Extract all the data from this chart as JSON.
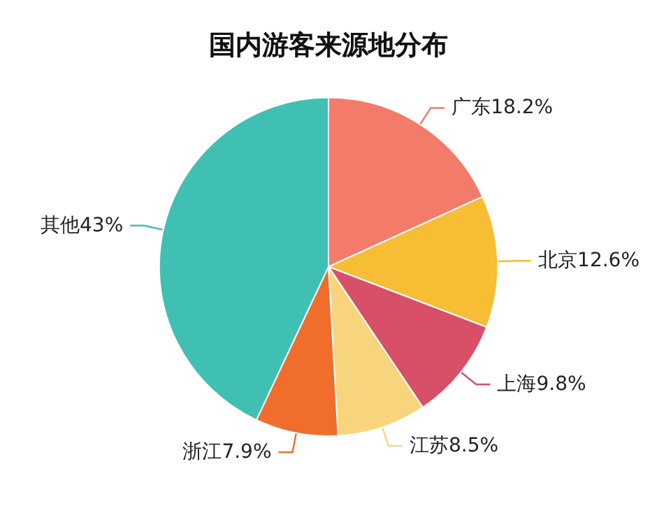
{
  "chart_data": {
    "type": "pie",
    "title": "国内游客来源地分布",
    "categories": [
      "广东",
      "北京",
      "上海",
      "江苏",
      "浙江",
      "其他"
    ],
    "values": [
      18.2,
      12.6,
      9.8,
      8.5,
      7.9,
      43
    ],
    "value_labels": [
      "18.2%",
      "12.6%",
      "9.8%",
      "8.5%",
      "7.9%",
      "43%"
    ],
    "colors": [
      "#f27b69",
      "#f6bd35",
      "#d84f68",
      "#f8d57c",
      "#f06d2b",
      "#3fc0b2"
    ],
    "legend": false
  }
}
